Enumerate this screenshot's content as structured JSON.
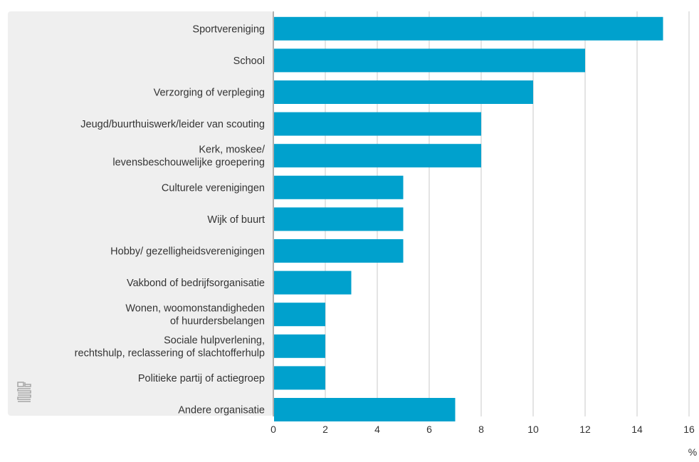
{
  "chart_data": {
    "type": "bar",
    "orientation": "horizontal",
    "categories": [
      [
        "Sportvereniging"
      ],
      [
        "School"
      ],
      [
        "Verzorging of verpleging"
      ],
      [
        "Jeugd/buurthuiswerk/leider van scouting"
      ],
      [
        "Kerk, moskee/",
        "levensbeschouwelijke groepering"
      ],
      [
        "Culturele verenigingen"
      ],
      [
        "Wijk of buurt"
      ],
      [
        "Hobby/ gezelligheidsverenigingen"
      ],
      [
        "Vakbond of bedrijfsorganisatie"
      ],
      [
        "Wonen, woomonstandigheden",
        "of huurdersbelangen"
      ],
      [
        "Sociale hulpverlening,",
        "rechtshulp,  reclassering of slachtofferhulp"
      ],
      [
        "Politieke partij of actiegroep"
      ],
      [
        "Andere organisatie"
      ]
    ],
    "values": [
      15,
      12,
      10,
      8,
      8,
      5,
      5,
      5,
      3,
      2,
      2,
      2,
      7
    ],
    "xlim": [
      0,
      16
    ],
    "xticks": [
      0,
      2,
      4,
      6,
      8,
      10,
      12,
      14,
      16
    ],
    "xlabel": "%",
    "grid": true,
    "logo": "cbs-logo",
    "colors": {
      "bar": "#00a1cd",
      "label_panel": "#efefef",
      "grid": "#c8c8c8",
      "axis": "#666666",
      "text": "#333333",
      "logo": "#a6a6a6"
    }
  }
}
